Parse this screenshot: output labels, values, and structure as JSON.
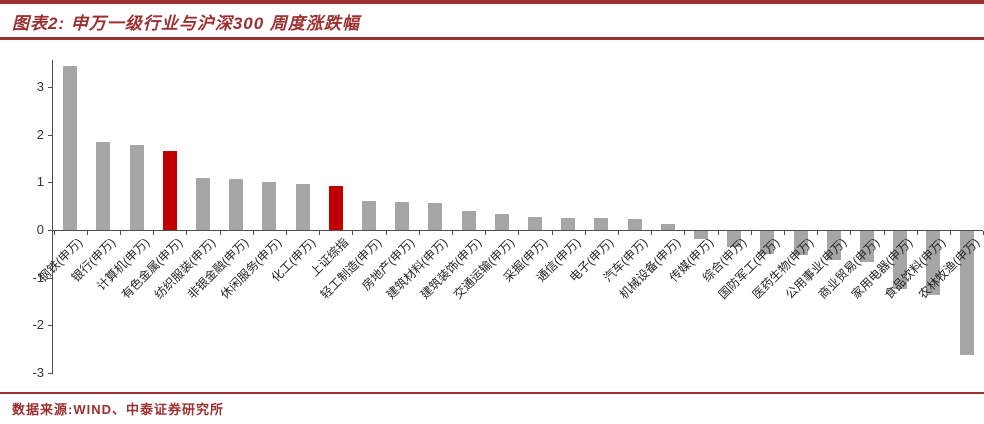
{
  "header": {
    "title": "图表2: 申万一级行业与沪深300 周度涨跌幅"
  },
  "footer": {
    "source": "数据来源:WIND、中泰证券研究所"
  },
  "colors": {
    "accent_dark_red": "#9c2f2f",
    "bar_gray": "#a6a6a6",
    "bar_red": "#c00000",
    "axis_gray": "#4d4d4d"
  },
  "chart_data": {
    "type": "bar",
    "title": "申万一级行业与沪深300 周度涨跌幅",
    "categories": [
      "钢铁(申万)",
      "银行(申万)",
      "计算机(申万)",
      "有色金属(申万)",
      "纺织服装(申万)",
      "非银金融(申万)",
      "休闲服务(申万)",
      "化工(申万)",
      "上证综指",
      "轻工制造(申万)",
      "房地产(申万)",
      "建筑材料(申万)",
      "建筑装饰(申万)",
      "交通运输(申万)",
      "采掘(申万)",
      "通信(申万)",
      "电子(申万)",
      "汽车(申万)",
      "机械设备(申万)",
      "传媒(申万)",
      "综合(申万)",
      "国防军工(申万)",
      "医药生物(申万)",
      "公用事业(申万)",
      "商业贸易(申万)",
      "家用电器(申万)",
      "食品饮料(申万)",
      "农林牧渔(申万)"
    ],
    "values": [
      3.45,
      1.85,
      1.78,
      1.65,
      1.1,
      1.07,
      1.0,
      0.97,
      0.92,
      0.6,
      0.58,
      0.57,
      0.4,
      0.34,
      0.27,
      0.26,
      0.25,
      0.23,
      0.13,
      -0.17,
      -0.33,
      -0.48,
      -0.5,
      -0.6,
      -0.65,
      -1.22,
      -1.35,
      -2.6
    ],
    "highlight_indices": [
      3,
      8
    ],
    "bar_color": "#a6a6a6",
    "highlight_color": "#c00000",
    "xlabel": "",
    "ylabel": "",
    "yticks": [
      3,
      2,
      1,
      0,
      -1,
      -2,
      -3
    ],
    "ylim": [
      -3,
      3.6
    ],
    "grid": false,
    "legend": null
  }
}
